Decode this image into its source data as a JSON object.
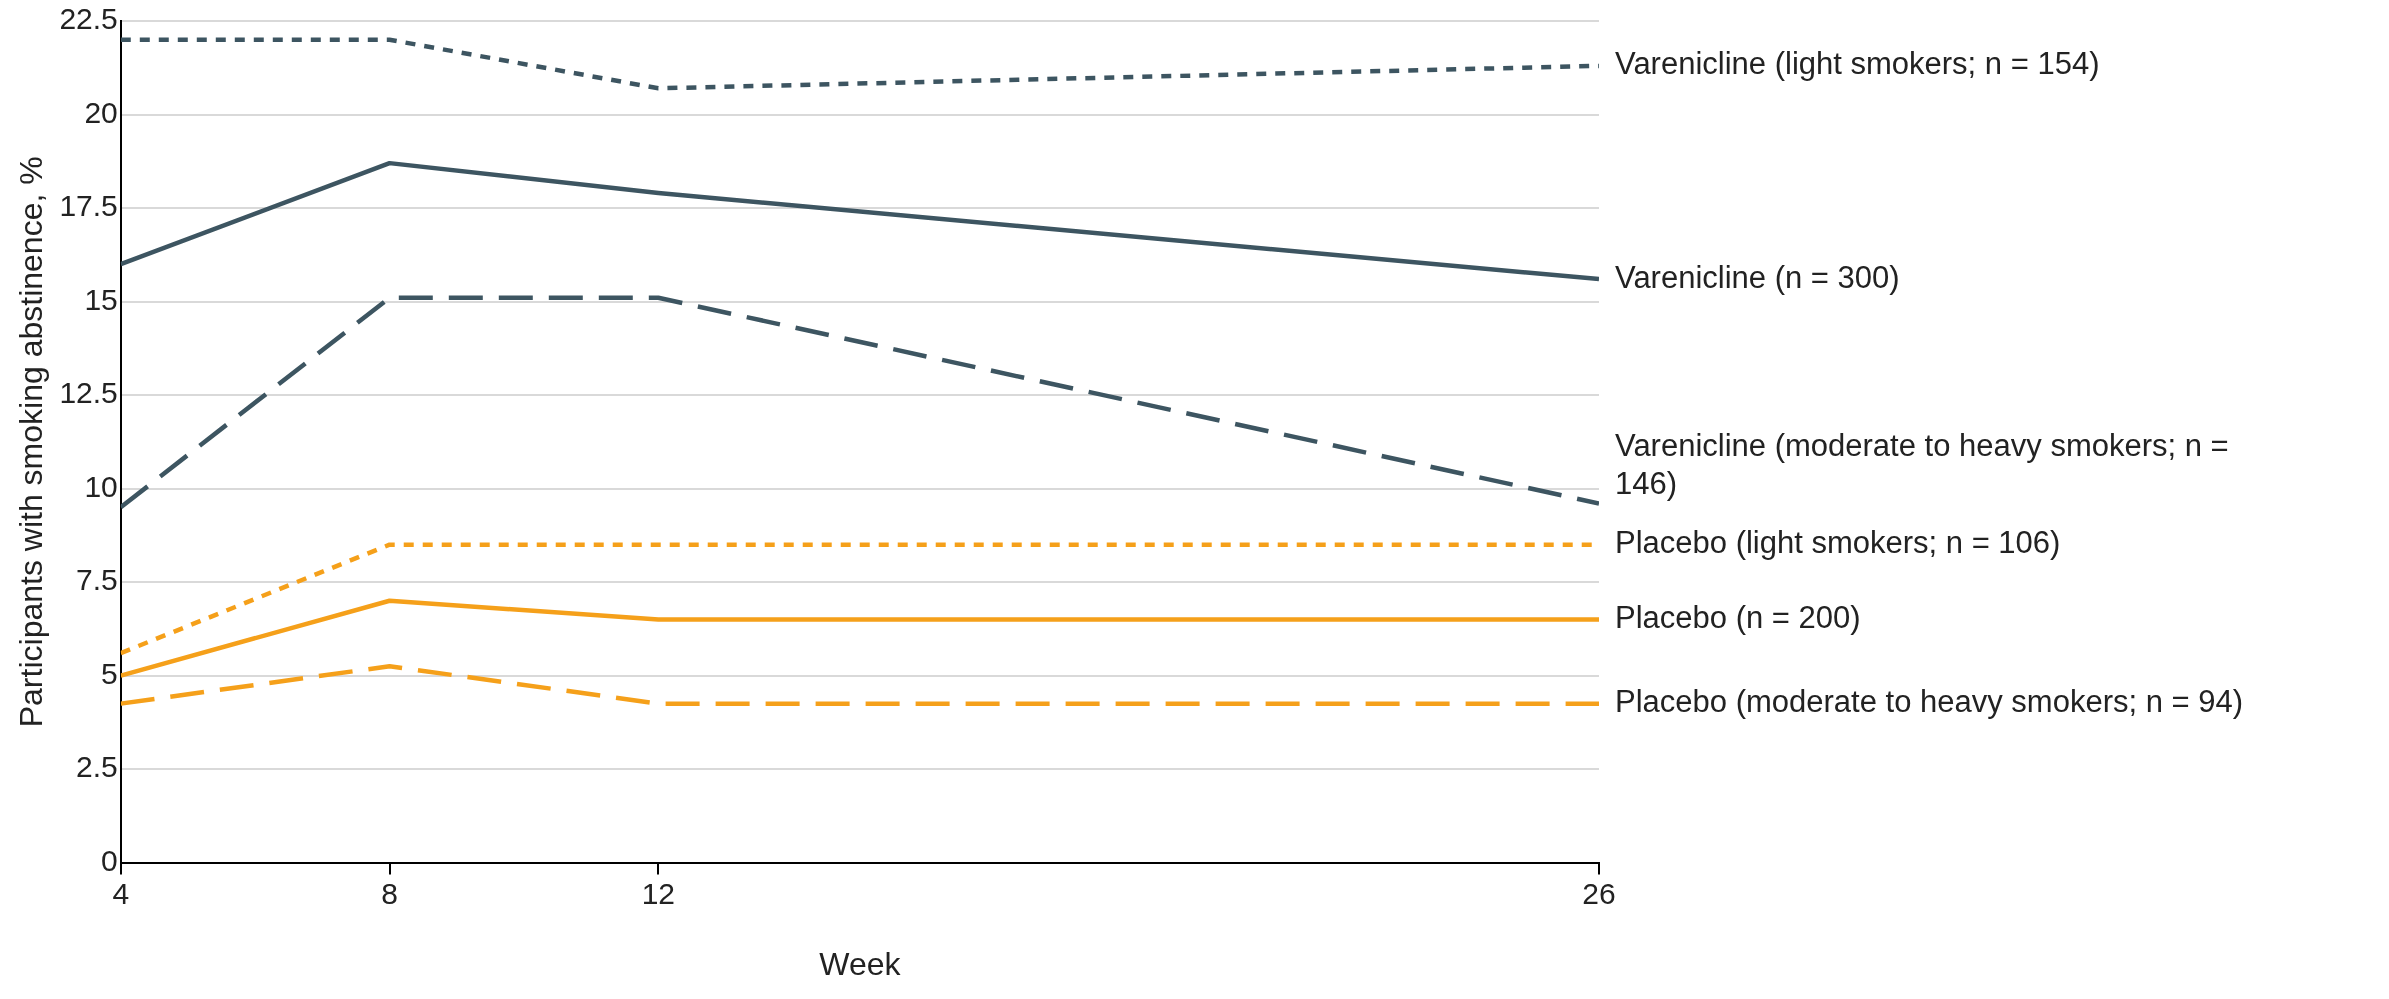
{
  "chart_data": {
    "type": "line",
    "xlabel": "Week",
    "ylabel": "Participants with smoking abstinence, %",
    "x": [
      4,
      8,
      12,
      26
    ],
    "xlim": [
      4,
      26
    ],
    "xticks": [
      4,
      8,
      12,
      26
    ],
    "ylim": [
      0,
      22.5
    ],
    "yticks": [
      0,
      2.5,
      5,
      7.5,
      10,
      12.5,
      15,
      17.5,
      20,
      22.5
    ],
    "grid": "y",
    "legend": false,
    "marker": "none",
    "series": [
      {
        "name": "Varenicline (light smokers; n = 154)",
        "color": "#3d5561",
        "line_style": "dotted",
        "values": [
          22.0,
          22.0,
          20.7,
          21.3
        ]
      },
      {
        "name": "Varenicline (n = 300)",
        "color": "#3d5561",
        "line_style": "solid",
        "values": [
          16.0,
          18.7,
          17.9,
          15.6
        ]
      },
      {
        "name": "Varenicline (moderate to heavy smokers; n = 146)",
        "color": "#3d5561",
        "line_style": "dashed",
        "values": [
          9.5,
          15.1,
          15.1,
          9.6
        ]
      },
      {
        "name": "Placebo (light smokers; n = 106)",
        "color": "#f5a01a",
        "line_style": "dotted",
        "values": [
          5.6,
          8.5,
          8.5,
          8.5
        ]
      },
      {
        "name": "Placebo (n = 200)",
        "color": "#f5a01a",
        "line_style": "solid",
        "values": [
          5.0,
          7.0,
          6.5,
          6.5
        ]
      },
      {
        "name": "Placebo (moderate to heavy smokers; n = 94)",
        "color": "#f5a01a",
        "line_style": "dashed",
        "values": [
          4.25,
          5.25,
          4.25,
          4.25
        ]
      }
    ]
  }
}
